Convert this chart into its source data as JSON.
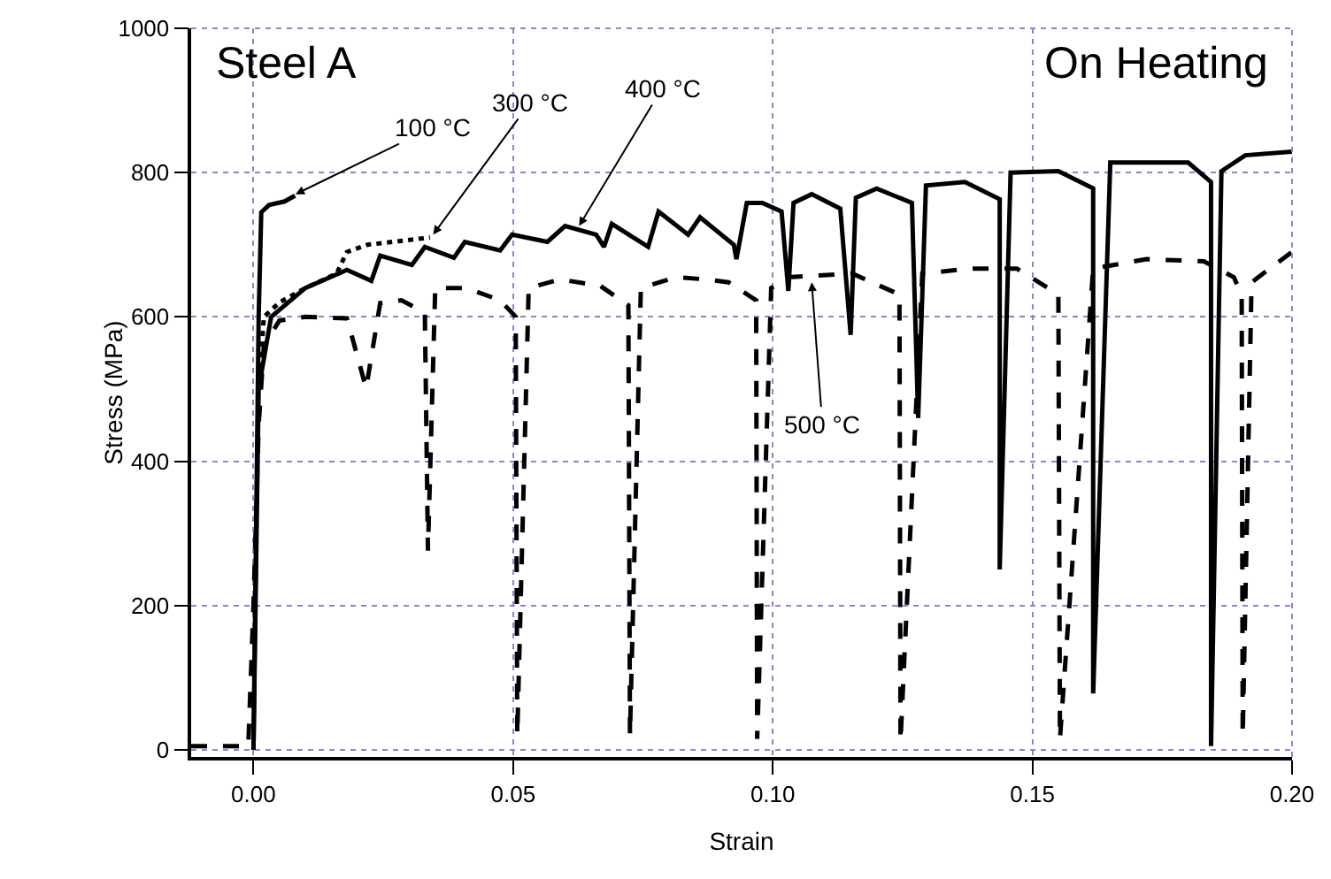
{
  "chart_data": {
    "type": "line",
    "xlabel": "Strain",
    "ylabel": "Stress (MPa)",
    "xlim": [
      -0.012,
      0.2
    ],
    "xticks": [
      {
        "value": 0,
        "label": "0.00"
      },
      0.05,
      {
        "value": 0.1,
        "label": "0.10"
      },
      0.15,
      {
        "value": 0.2,
        "label": "0.20"
      }
    ],
    "ylim": [
      -10,
      1000
    ],
    "yticks": [
      0,
      200,
      400,
      600,
      800,
      1000
    ],
    "grid": true,
    "marker": "none",
    "annotations": [
      "Steel A",
      "On Heating",
      {
        "text": "100 °C",
        "x": 0.0081,
        "y": 770
      },
      {
        "text": "300 °C",
        "x": 0.0346,
        "y": 714
      },
      {
        "text": "400 °C",
        "x": 0.0627,
        "y": 726
      },
      {
        "text": "500 °C",
        "x": 0.1075,
        "y": 648
      }
    ],
    "series": [
      {
        "color": "#000000",
        "line_style": "solid",
        "x": [
          0,
          0.0005,
          0.001,
          0.0015,
          0.003,
          0.006,
          0.008
        ],
        "values": [
          0,
          300,
          600,
          745,
          755,
          760,
          768
        ]
      },
      {
        "color": "#000000",
        "line_style": "dotted",
        "x": [
          0.001,
          0.002,
          0.005,
          0.01,
          0.016,
          0.018,
          0.022,
          0.028,
          0.034
        ],
        "values": [
          500,
          600,
          620,
          640,
          660,
          690,
          700,
          705,
          710
        ]
      },
      {
        "color": "#000000",
        "line_style": "solid",
        "x": [
          0,
          0.0005,
          0.001,
          0.0034,
          0.01,
          0.018,
          0.0227,
          0.0244,
          0.0305,
          0.033,
          0.0386,
          0.0407,
          0.0475,
          0.0498,
          0.0566,
          0.06,
          0.066,
          0.0675,
          0.069,
          0.076,
          0.078,
          0.0837,
          0.086,
          0.0925,
          0.093,
          0.095,
          0.098,
          0.1017,
          0.103,
          0.104,
          0.1075,
          0.113,
          0.115,
          0.116,
          0.12,
          0.1268,
          0.128,
          0.1295,
          0.137,
          0.1437,
          0.1437,
          0.1458,
          0.155,
          0.1617,
          0.1617,
          0.165,
          0.18,
          0.1844,
          0.1844,
          0.1864,
          0.191,
          0.2
        ],
        "values": [
          0,
          250,
          500,
          600,
          640,
          665,
          650,
          685,
          672,
          697,
          682,
          704,
          692,
          714,
          704,
          726,
          714,
          697,
          729,
          697,
          746,
          714,
          738,
          700,
          680,
          758,
          758,
          746,
          636,
          758,
          770,
          750,
          575,
          765,
          778,
          758,
          460,
          782,
          787,
          763,
          250,
          800,
          802,
          778,
          78,
          814,
          814,
          787,
          5,
          802,
          824,
          829
        ]
      },
      {
        "color": "#000000",
        "line_style": "dashed",
        "x": [
          -0.012,
          -0.001,
          0,
          0.001,
          0.002,
          0.005,
          0.01,
          0.018,
          0.0217,
          0.0244,
          0.0285,
          0.033,
          0.0336,
          0.035,
          0.041,
          0.0475,
          0.0505,
          0.0508,
          0.053,
          0.059,
          0.0668,
          0.0722,
          0.0725,
          0.0746,
          0.0813,
          0.0871,
          0.0915,
          0.0968,
          0.097,
          0.0997,
          0.103,
          0.1153,
          0.1244,
          0.1246,
          0.1288,
          0.138,
          0.147,
          0.155,
          0.1553,
          0.1617,
          0.172,
          0.183,
          0.1888,
          0.1903,
          0.1905,
          0.1922,
          0.2
        ],
        "values": [
          5,
          5,
          200,
          450,
          560,
          595,
          600,
          598,
          501,
          619,
          623,
          606,
          276,
          640,
          640,
          623,
          600,
          20,
          640,
          652,
          643,
          616,
          20,
          640,
          655,
          652,
          648,
          623,
          15,
          640,
          655,
          660,
          631,
          12,
          660,
          667,
          667,
          631,
          15,
          667,
          680,
          677,
          655,
          630,
          20,
          648,
          690
        ]
      }
    ]
  }
}
